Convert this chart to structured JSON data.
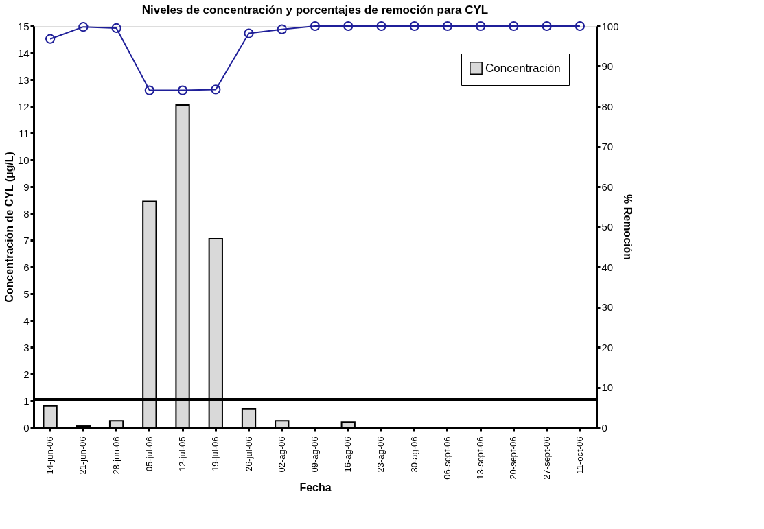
{
  "chart_data": {
    "type": "bar",
    "title": "Niveles de concentración y porcentajes de remoción para CYL",
    "xlabel": "Fecha",
    "ylabel": "Concentración de CYL (µg/L)",
    "y2label": "% Remoción",
    "categories": [
      "14-jun-06",
      "21-jun-06",
      "28-jun-06",
      "05-jul-06",
      "12-jul-05",
      "19-jul-06",
      "26-jul-06",
      "02-ag-06",
      "09-ag-06",
      "16-ag-06",
      "23-ag-06",
      "30-ag-06",
      "06-sept-06",
      "13-sept-06",
      "20-sept-06",
      "27-sept-06",
      "11-oct-06"
    ],
    "series": [
      {
        "name": "Concentración",
        "color": "#d9d9d9",
        "values": [
          0.8,
          0.05,
          0.25,
          8.45,
          12.05,
          7.05,
          0.7,
          0.25,
          null,
          0.2,
          null,
          null,
          null,
          null,
          null,
          null,
          null
        ]
      },
      {
        "type": "line",
        "axis": "y2",
        "color": "#1f1f99",
        "marker": "circle",
        "values": [
          96.8,
          99.8,
          99.5,
          84.0,
          84.0,
          84.2,
          98.2,
          99.2,
          100,
          100,
          100,
          100,
          100,
          100,
          100,
          100,
          100
        ]
      }
    ],
    "ylim": [
      0,
      15
    ],
    "yticks": [
      0,
      1,
      2,
      3,
      4,
      5,
      6,
      7,
      8,
      9,
      10,
      11,
      12,
      13,
      14,
      15
    ],
    "y2lim": [
      0,
      100
    ],
    "y2ticks": [
      0,
      10,
      20,
      30,
      40,
      50,
      60,
      70,
      80,
      90,
      100
    ],
    "ref_lines": [
      {
        "axis": "y",
        "value": 1.05,
        "color": "#000000"
      }
    ],
    "legend": "top right",
    "grid": false
  }
}
